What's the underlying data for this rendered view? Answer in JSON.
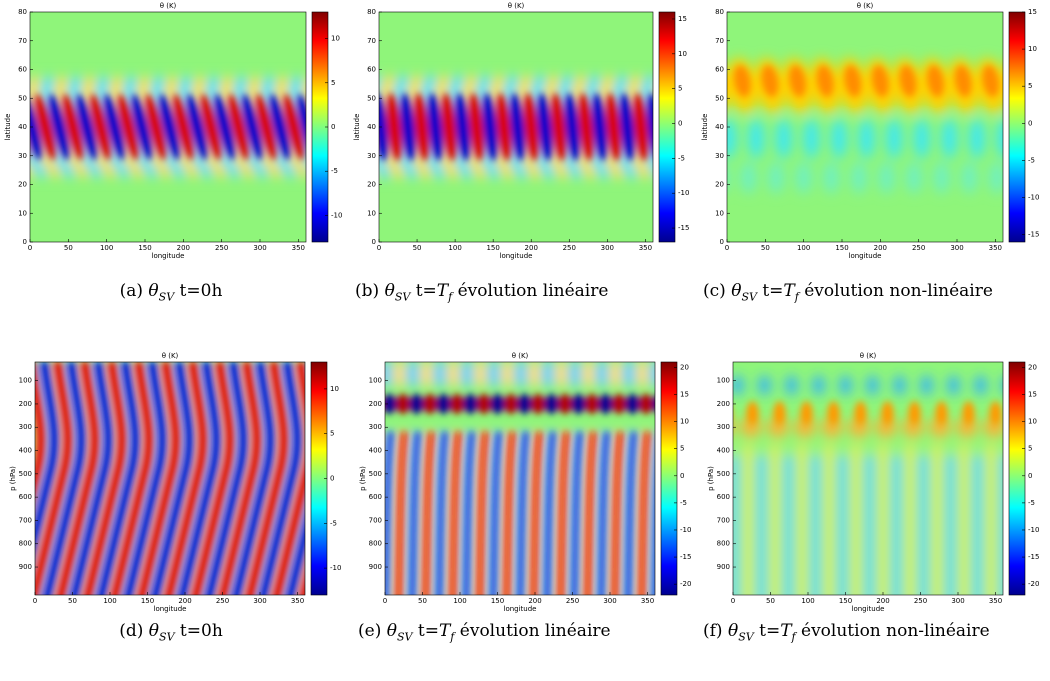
{
  "panels": [
    {
      "title": "θ (K)",
      "xlabel": "longitude",
      "ylabel": "latitude",
      "xlim": [
        0,
        360
      ],
      "ylim": [
        0,
        80
      ],
      "xticks": [
        0,
        50,
        100,
        150,
        200,
        250,
        300,
        350
      ],
      "yticks": [
        0,
        10,
        20,
        30,
        40,
        50,
        60,
        70,
        80
      ],
      "clim": [
        -13,
        13
      ],
      "cticks": [
        -10,
        -5,
        0,
        5,
        10
      ],
      "caption": {
        "label": "(a)",
        "theta": "θ",
        "sub": "SV",
        "t": "t=0h"
      }
    },
    {
      "title": "θ (K)",
      "xlabel": "longitude",
      "ylabel": "latitude",
      "xlim": [
        0,
        360
      ],
      "ylim": [
        0,
        80
      ],
      "xticks": [
        0,
        50,
        100,
        150,
        200,
        250,
        300,
        350
      ],
      "yticks": [
        0,
        10,
        20,
        30,
        40,
        50,
        60,
        70,
        80
      ],
      "clim": [
        -17,
        16
      ],
      "cticks": [
        -15,
        -10,
        -5,
        0,
        5,
        10,
        15
      ],
      "caption": {
        "label": "(b)",
        "theta": "θ",
        "sub": "SV",
        "t": "t=",
        "tf": "T",
        "tfsub": "f",
        "rest": "évolution linéaire"
      }
    },
    {
      "title": "θ (K)",
      "xlabel": "longitude",
      "ylabel": "latitude",
      "xlim": [
        0,
        360
      ],
      "ylim": [
        0,
        80
      ],
      "xticks": [
        0,
        50,
        100,
        150,
        200,
        250,
        300,
        350
      ],
      "yticks": [
        0,
        10,
        20,
        30,
        40,
        50,
        60,
        70,
        80
      ],
      "clim": [
        -16,
        15
      ],
      "cticks": [
        -15,
        -10,
        -5,
        0,
        5,
        10,
        15
      ],
      "caption": {
        "label": "(c)",
        "theta": "θ",
        "sub": "SV",
        "t": "t=",
        "tf": "T",
        "tfsub": "f",
        "rest": "évolution non-linéaire"
      }
    },
    {
      "title": "θ (K)",
      "xlabel": "longitude",
      "ylabel": "p (hPa)",
      "xlim": [
        0,
        360
      ],
      "ylim": [
        1020,
        20
      ],
      "xticks": [
        0,
        50,
        100,
        150,
        200,
        250,
        300,
        350
      ],
      "yticks": [
        100,
        200,
        300,
        400,
        500,
        600,
        700,
        800,
        900
      ],
      "clim": [
        -13,
        13
      ],
      "cticks": [
        -10,
        -5,
        0,
        5,
        10
      ],
      "caption": {
        "label": "(d)",
        "theta": "θ",
        "sub": "SV",
        "t": "t=0h"
      }
    },
    {
      "title": "θ (K)",
      "xlabel": "longitude",
      "ylabel": "p (hPa)",
      "xlim": [
        0,
        360
      ],
      "ylim": [
        1020,
        20
      ],
      "xticks": [
        0,
        50,
        100,
        150,
        200,
        250,
        300,
        350
      ],
      "yticks": [
        100,
        200,
        300,
        400,
        500,
        600,
        700,
        800,
        900
      ],
      "clim": [
        -22,
        21
      ],
      "cticks": [
        -20,
        -15,
        -10,
        -5,
        0,
        5,
        10,
        15,
        20
      ],
      "caption": {
        "label": "(e)",
        "theta": "θ",
        "sub": "SV",
        "t": "t=",
        "tf": "T",
        "tfsub": "f",
        "rest": "évolution linéaire"
      }
    },
    {
      "title": "θ (K)",
      "xlabel": "longitude",
      "ylabel": "p (hPa)",
      "xlim": [
        0,
        360
      ],
      "ylim": [
        1020,
        20
      ],
      "xticks": [
        0,
        50,
        100,
        150,
        200,
        250,
        300,
        350
      ],
      "yticks": [
        100,
        200,
        300,
        400,
        500,
        600,
        700,
        800,
        900
      ],
      "clim": [
        -22,
        21
      ],
      "cticks": [
        -20,
        -15,
        -10,
        -5,
        0,
        5,
        10,
        15,
        20
      ],
      "caption": {
        "label": "(f)",
        "theta": "θ",
        "sub": "SV",
        "t": "t=",
        "tf": "T",
        "tfsub": "f",
        "rest": "évolution non-linéaire"
      }
    }
  ]
}
